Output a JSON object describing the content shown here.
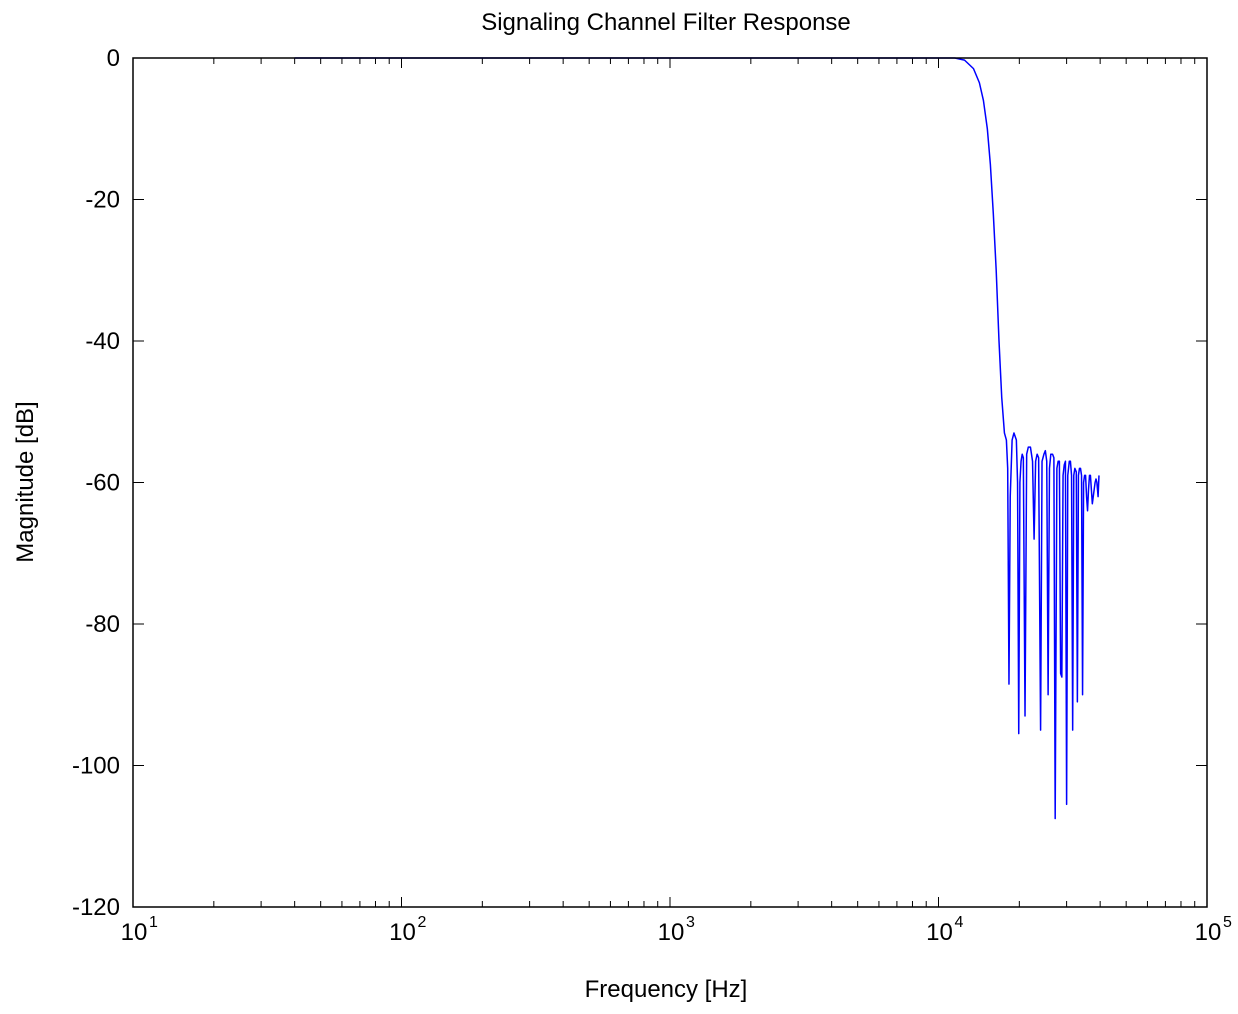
{
  "chart_data": {
    "type": "line",
    "title": "Signaling Channel Filter Response",
    "xlabel": "Frequency [Hz]",
    "ylabel": "Magnitude [dB]",
    "x_scale": "log",
    "xlim": [
      10,
      100000
    ],
    "ylim": [
      -120,
      0
    ],
    "x_ticks": [
      {
        "base": "10",
        "exp": "1",
        "value": 10
      },
      {
        "base": "10",
        "exp": "2",
        "value": 100
      },
      {
        "base": "10",
        "exp": "3",
        "value": 1000
      },
      {
        "base": "10",
        "exp": "4",
        "value": 10000
      },
      {
        "base": "10",
        "exp": "5",
        "value": 100000
      }
    ],
    "y_ticks": [
      {
        "label": "0",
        "value": 0
      },
      {
        "label": "-20",
        "value": -20
      },
      {
        "label": "-40",
        "value": -40
      },
      {
        "label": "-60",
        "value": -60
      },
      {
        "label": "-80",
        "value": -80
      },
      {
        "label": "-100",
        "value": -100
      },
      {
        "label": "-120",
        "value": -120
      }
    ],
    "grid": false,
    "series": [
      {
        "color": "#0000ff",
        "x": [
          40,
          100,
          1000,
          10000,
          11500,
          12500,
          13500,
          14200,
          14700,
          15200,
          15600,
          16000,
          16400,
          16800,
          17200,
          17600,
          17900,
          18100,
          18300,
          18500,
          18800,
          19100,
          19300,
          19500,
          19700,
          19900,
          20100,
          20300,
          20500,
          20700,
          21000,
          21300,
          21600,
          22000,
          22400,
          22700,
          23000,
          23300,
          23600,
          24000,
          24300,
          24700,
          25000,
          25300,
          25600,
          25900,
          26200,
          26600,
          26900,
          27200,
          27600,
          27900,
          28200,
          28500,
          28800,
          29100,
          29400,
          29700,
          30000,
          30300,
          30700,
          31000,
          31300,
          31600,
          31900,
          32200,
          32600,
          32900,
          33200,
          33500,
          33800,
          34100,
          34400,
          34700,
          35000,
          35300,
          35600,
          35900,
          36200,
          36500,
          36800,
          37100,
          37400,
          37700,
          38000,
          38300,
          38600,
          38900,
          39100,
          39300,
          39600
        ],
        "y": [
          0,
          0,
          0,
          0,
          0,
          -0.3,
          -1.5,
          -3.5,
          -6,
          -10,
          -15,
          -22,
          -30,
          -40,
          -48,
          -53,
          -54,
          -58,
          -88.5,
          -62,
          -54,
          -53,
          -53.5,
          -54,
          -60,
          -95.5,
          -60,
          -57,
          -56,
          -56.5,
          -93,
          -56,
          -55,
          -55,
          -57,
          -68,
          -57,
          -56,
          -56.5,
          -95,
          -57,
          -56,
          -55.5,
          -57,
          -90,
          -58,
          -56,
          -56,
          -56.5,
          -107.5,
          -58,
          -57,
          -57,
          -87,
          -87.5,
          -59,
          -57.5,
          -57,
          -105.5,
          -59,
          -57,
          -57,
          -59,
          -95,
          -59,
          -58,
          -58.5,
          -91,
          -59,
          -58,
          -58,
          -59,
          -90,
          -60,
          -59,
          -59,
          -62,
          -64,
          -61,
          -59,
          -59,
          -61,
          -63,
          -62,
          -61,
          -60,
          -59.5,
          -60,
          -61,
          -62,
          -59
        ]
      }
    ]
  }
}
